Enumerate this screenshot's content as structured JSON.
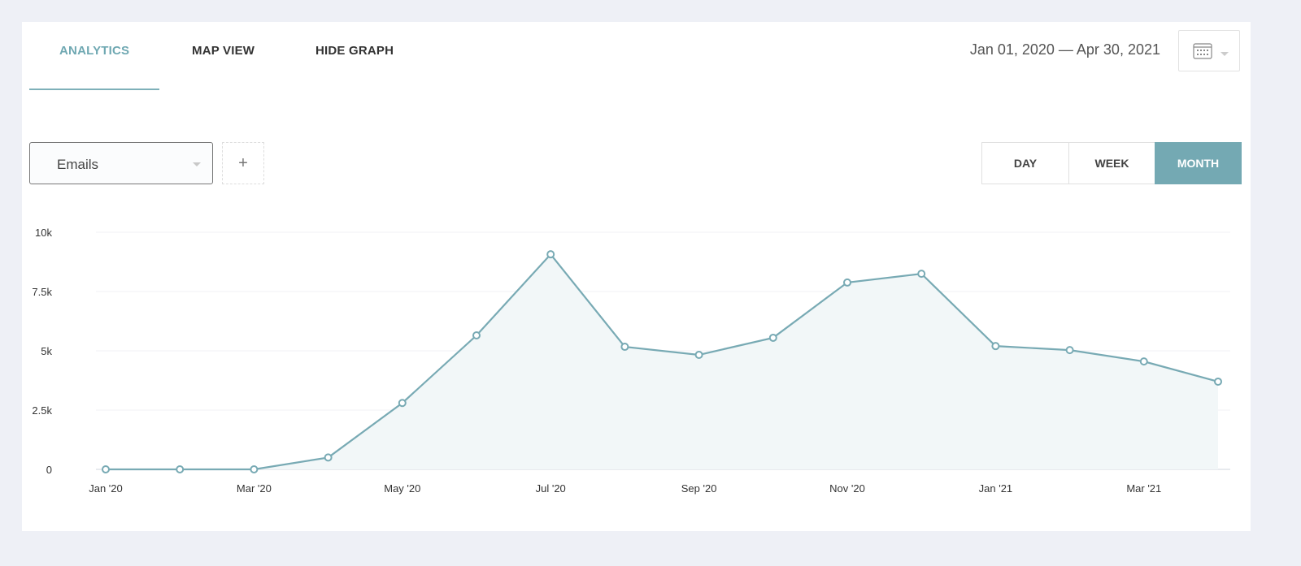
{
  "tabs": [
    {
      "label": "ANALYTICS",
      "active": true
    },
    {
      "label": "MAP VIEW",
      "active": false
    },
    {
      "label": "HIDE GRAPH",
      "active": false
    }
  ],
  "date_range": "Jan 01, 2020 — Apr 30, 2021",
  "icons": {
    "calendar": "calendar-icon",
    "caret": "chevron-down-icon",
    "add": "plus-icon"
  },
  "metric_select": {
    "value": "Emails"
  },
  "add_label": "+",
  "granularity": [
    {
      "label": "DAY",
      "active": false
    },
    {
      "label": "WEEK",
      "active": false
    },
    {
      "label": "MONTH",
      "active": true
    }
  ],
  "colors": {
    "accent": "#74a9b3",
    "line": "#78aab4",
    "fill": "#f2f7f8"
  },
  "chart_data": {
    "type": "area",
    "title": "",
    "xlabel": "",
    "ylabel": "",
    "x": [
      "Jan '20",
      "Feb '20",
      "Mar '20",
      "Apr '20",
      "May '20",
      "Jun '20",
      "Jul '20",
      "Aug '20",
      "Sep '20",
      "Oct '20",
      "Nov '20",
      "Dec '20",
      "Jan '21",
      "Feb '21",
      "Mar '21",
      "Apr '21"
    ],
    "x_tick_labels": [
      "Jan '20",
      "Mar '20",
      "May '20",
      "Jul '20",
      "Sep '20",
      "Nov '20",
      "Jan '21",
      "Mar '21"
    ],
    "series": [
      {
        "name": "Emails",
        "values": [
          0,
          0,
          0,
          500,
          2800,
          5650,
          9070,
          5170,
          4830,
          5550,
          7880,
          8250,
          5200,
          5030,
          4550,
          3700
        ]
      }
    ],
    "y_ticks": [
      {
        "value": 0,
        "label": "0"
      },
      {
        "value": 2500,
        "label": "2.5k"
      },
      {
        "value": 5000,
        "label": "5k"
      },
      {
        "value": 7500,
        "label": "7.5k"
      },
      {
        "value": 10000,
        "label": "10k"
      }
    ],
    "ylim": [
      0,
      10000
    ],
    "grid": true,
    "legend": "none"
  }
}
